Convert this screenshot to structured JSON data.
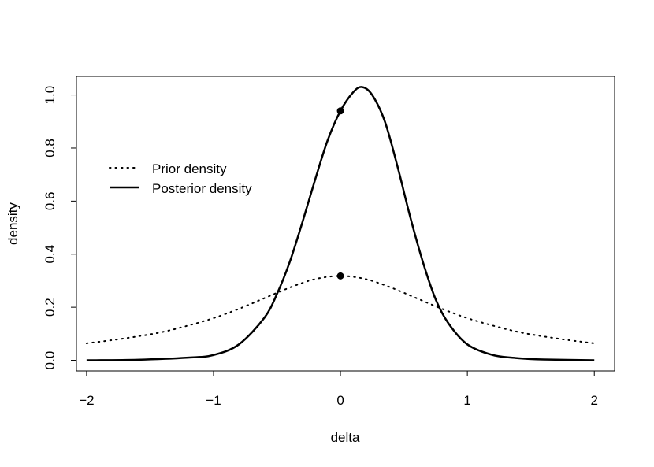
{
  "chart_data": {
    "type": "line",
    "title": "",
    "xlabel": "delta",
    "ylabel": "density",
    "xlim": [
      -2.08,
      2.16
    ],
    "ylim": [
      -0.04,
      1.07
    ],
    "x_ticks": [
      -2,
      -1,
      0,
      1,
      2
    ],
    "x_tick_labels": [
      "−2",
      "−1",
      "0",
      "1",
      "2"
    ],
    "y_ticks": [
      0.0,
      0.2,
      0.4,
      0.6,
      0.8,
      1.0
    ],
    "y_tick_labels": [
      "0.0",
      "0.2",
      "0.4",
      "0.6",
      "0.8",
      "1.0"
    ],
    "grid": false,
    "legend_position": "upper-left",
    "series": [
      {
        "name": "Prior density",
        "style": "dotted",
        "x": [
          -2.0,
          -1.8,
          -1.6,
          -1.4,
          -1.2,
          -1.0,
          -0.8,
          -0.6,
          -0.4,
          -0.2,
          0.0,
          0.2,
          0.4,
          0.6,
          0.8,
          1.0,
          1.2,
          1.4,
          1.6,
          1.8,
          2.0
        ],
        "y": [
          0.064,
          0.076,
          0.09,
          0.107,
          0.131,
          0.159,
          0.194,
          0.234,
          0.274,
          0.306,
          0.318,
          0.306,
          0.274,
          0.234,
          0.194,
          0.159,
          0.131,
          0.107,
          0.09,
          0.076,
          0.064
        ]
      },
      {
        "name": "Posterior density",
        "style": "solid",
        "x": [
          -2.0,
          -1.6,
          -1.2,
          -1.0,
          -0.8,
          -0.6,
          -0.5,
          -0.4,
          -0.3,
          -0.2,
          -0.1,
          0.0,
          0.1,
          0.17,
          0.25,
          0.35,
          0.45,
          0.55,
          0.65,
          0.75,
          0.85,
          1.0,
          1.2,
          1.4,
          1.6,
          2.0
        ],
        "y": [
          0.0,
          0.002,
          0.01,
          0.02,
          0.06,
          0.16,
          0.25,
          0.37,
          0.52,
          0.68,
          0.83,
          0.94,
          1.01,
          1.03,
          1.0,
          0.9,
          0.73,
          0.54,
          0.37,
          0.23,
          0.14,
          0.06,
          0.02,
          0.008,
          0.003,
          0.0
        ]
      }
    ],
    "points": [
      {
        "x": 0.0,
        "y": 0.318
      },
      {
        "x": 0.0,
        "y": 0.94
      }
    ]
  }
}
